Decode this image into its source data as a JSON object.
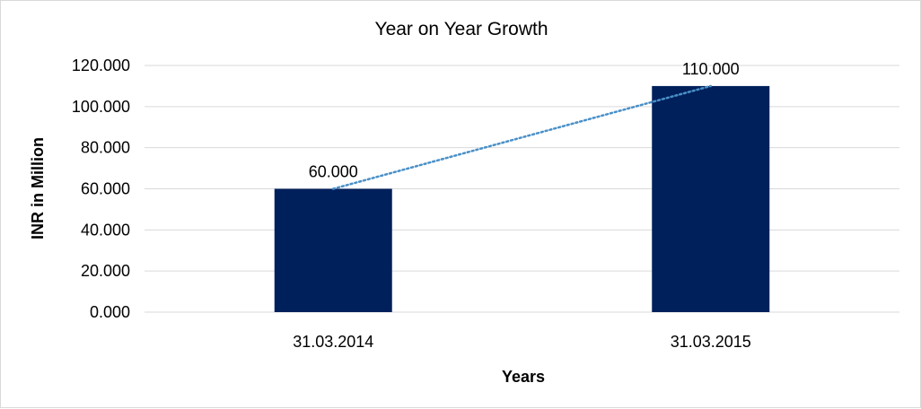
{
  "chart_data": {
    "type": "bar",
    "title": "Year on Year Growth",
    "xlabel": "Years",
    "ylabel": "INR in Million",
    "categories": [
      "31.03.2014",
      "31.03.2015"
    ],
    "values": [
      60,
      110
    ],
    "data_labels": [
      "60.000",
      "110.000"
    ],
    "ylim": [
      0,
      120
    ],
    "y_ticks": [
      0,
      20,
      40,
      60,
      80,
      100,
      120
    ],
    "y_tick_labels": [
      "0.000",
      "20.000",
      "40.000",
      "60.000",
      "80.000",
      "100.000",
      "120.000"
    ],
    "grid": true,
    "legend": "none",
    "trendline": {
      "type": "linear",
      "style": "dotted"
    },
    "colors": {
      "bar": "#00205b",
      "trendline": "#4a90c8",
      "grid": "#d9d9d9"
    }
  }
}
